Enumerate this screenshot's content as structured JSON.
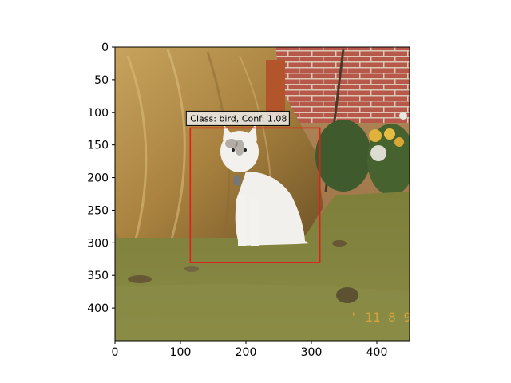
{
  "image": {
    "description_icon": "photo-image",
    "x_range": [
      0,
      450
    ],
    "y_range": [
      450,
      0
    ]
  },
  "axes": {
    "x_ticks": [
      0,
      100,
      200,
      300,
      400
    ],
    "y_ticks": [
      0,
      50,
      100,
      150,
      200,
      250,
      300,
      350,
      400
    ]
  },
  "detection": {
    "label": "Class: bird, Conf: 1.08",
    "box": {
      "x_min": 115,
      "y_min": 124,
      "x_max": 313,
      "y_max": 330
    },
    "box_color": "#e0201c"
  }
}
